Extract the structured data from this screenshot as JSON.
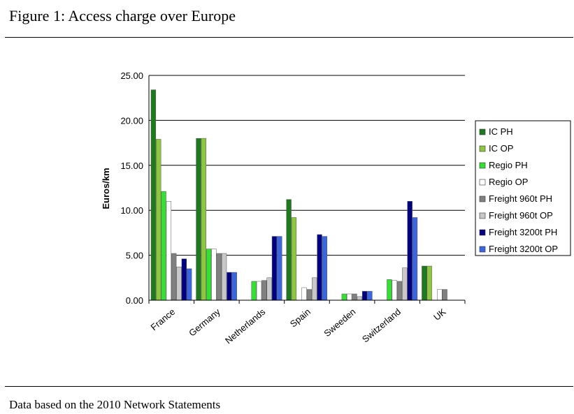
{
  "figure": {
    "title": "Figure 1: Access charge over Europe",
    "note": "Data based on the 2010 Network Statements"
  },
  "chart_data": {
    "type": "bar",
    "title": "",
    "xlabel": "",
    "ylabel": "Euros/km",
    "ylim": [
      0,
      25
    ],
    "yticks": [
      "0.00",
      "5.00",
      "10.00",
      "15.00",
      "20.00",
      "25.00"
    ],
    "grid": true,
    "legend_position": "right",
    "categories": [
      "France",
      "Germany",
      "Netherlands",
      "Spain",
      "Sweeden",
      "Switzerland",
      "UK"
    ],
    "series": [
      {
        "name": "IC PH",
        "color": "#1f7a1f",
        "values": [
          23.4,
          18.0,
          0,
          11.2,
          0,
          0,
          3.8
        ]
      },
      {
        "name": "IC OP",
        "color": "#8dc63f",
        "values": [
          17.9,
          18.0,
          0,
          9.2,
          0,
          0,
          3.8
        ]
      },
      {
        "name": "Regio PH",
        "color": "#33e033",
        "values": [
          12.1,
          5.7,
          2.1,
          0,
          0.7,
          2.3,
          0
        ]
      },
      {
        "name": "Regio OP",
        "color": "#ffffff",
        "values": [
          11.0,
          5.7,
          2.1,
          1.4,
          0.7,
          2.2,
          1.2
        ]
      },
      {
        "name": "Freight 960t PH",
        "color": "#808080",
        "values": [
          5.2,
          5.2,
          2.2,
          1.2,
          0.7,
          2.1,
          1.2
        ]
      },
      {
        "name": "Freight 960t OP",
        "color": "#c8c8c8",
        "values": [
          3.7,
          5.2,
          2.5,
          2.5,
          0.4,
          3.6,
          0
        ]
      },
      {
        "name": "Freight 3200t PH",
        "color": "#000080",
        "values": [
          4.6,
          3.1,
          7.1,
          7.3,
          1.0,
          11.0,
          0
        ]
      },
      {
        "name": "Freight 3200t OP",
        "color": "#3a66e0",
        "values": [
          3.5,
          3.1,
          7.1,
          7.1,
          1.0,
          9.2,
          0
        ]
      }
    ]
  }
}
